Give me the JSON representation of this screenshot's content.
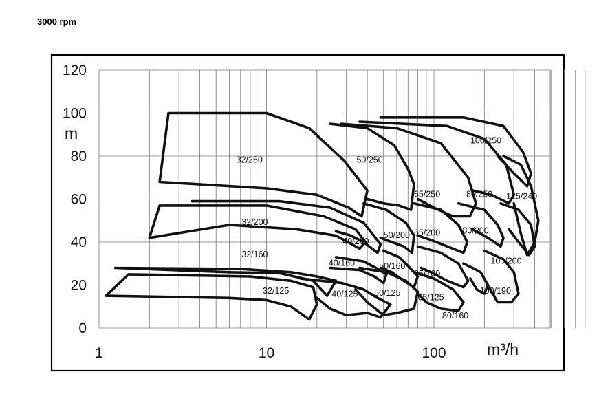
{
  "header": {
    "speed": "3000 rpm"
  },
  "chart_data": {
    "type": "line",
    "title": "",
    "xlabel": "m³/h",
    "ylabel": "m",
    "xscale": "log",
    "xlim": [
      1,
      800
    ],
    "ylim": [
      0,
      120
    ],
    "x_ticks": [
      1,
      10,
      100
    ],
    "x_tick_labels": [
      "1",
      "10",
      "100"
    ],
    "y_ticks": [
      0,
      20,
      40,
      60,
      80,
      100,
      120
    ],
    "y_tick_labels": [
      "0",
      "20",
      "40",
      "60",
      "80",
      "100",
      "120"
    ],
    "grid": true,
    "legend": "none",
    "series": [
      {
        "name": "32/250",
        "label_pos": [
          6.6,
          77
        ],
        "outline": [
          [
            2.3,
            68
          ],
          [
            2.6,
            100
          ],
          [
            10,
            100
          ],
          [
            18,
            93
          ],
          [
            29,
            78
          ],
          [
            40,
            64
          ],
          [
            37,
            52
          ],
          [
            31,
            56
          ],
          [
            20,
            62
          ],
          [
            10,
            65
          ],
          [
            2.3,
            68
          ]
        ]
      },
      {
        "name": "32/200",
        "label_pos": [
          7.1,
          48
        ],
        "outline": [
          [
            2.3,
            57
          ],
          [
            10,
            57
          ],
          [
            22,
            52
          ],
          [
            34,
            46
          ],
          [
            39,
            40
          ],
          [
            36,
            37
          ],
          [
            26,
            43
          ],
          [
            15,
            46
          ],
          [
            6,
            48
          ],
          [
            2,
            42
          ],
          [
            2.3,
            57
          ]
        ]
      },
      {
        "name": "32/160",
        "label_pos": [
          7.1,
          33
        ],
        "outline": [
          [
            1.25,
            28
          ],
          [
            7,
            27.5
          ],
          [
            14,
            26
          ],
          [
            20,
            24
          ],
          [
            26,
            22
          ],
          [
            23,
            15
          ],
          [
            19,
            22
          ],
          [
            12,
            25.5
          ],
          [
            6,
            26
          ],
          [
            1.25,
            28
          ]
        ]
      },
      {
        "name": "32/125",
        "label_pos": [
          9.5,
          16
        ],
        "outline": [
          [
            1.5,
            25
          ],
          [
            8,
            24
          ],
          [
            14,
            22
          ],
          [
            19,
            19
          ],
          [
            20,
            11
          ],
          [
            18,
            4
          ],
          [
            14,
            10
          ],
          [
            10,
            13
          ],
          [
            6,
            14
          ],
          [
            1.1,
            15
          ],
          [
            1.5,
            25
          ]
        ]
      },
      {
        "name": "40/200",
        "label_pos": [
          28.5,
          39
        ],
        "outline": [
          [
            3.6,
            59
          ],
          [
            12,
            59
          ],
          [
            24,
            56
          ],
          [
            38,
            49
          ],
          [
            48,
            39
          ],
          [
            46,
            35
          ],
          [
            38,
            40
          ],
          [
            32,
            43
          ],
          [
            26,
            45
          ]
        ]
      },
      {
        "name": "40/160",
        "label_pos": [
          23.5,
          29
        ],
        "outline": [
          [
            26,
            33
          ],
          [
            38,
            31
          ],
          [
            45,
            28
          ],
          [
            52,
            25
          ],
          [
            50,
            21
          ],
          [
            44,
            24
          ],
          [
            36,
            27
          ],
          [
            24,
            28
          ]
        ]
      },
      {
        "name": "40/125",
        "label_pos": [
          24.5,
          14.5
        ],
        "outline": [
          [
            16,
            23
          ],
          [
            28,
            21
          ],
          [
            38,
            18
          ],
          [
            46,
            14
          ],
          [
            55,
            11
          ],
          [
            48,
            5
          ],
          [
            40,
            7
          ],
          [
            30,
            6
          ],
          [
            24,
            9
          ],
          [
            20,
            14
          ]
        ]
      },
      {
        "name": "50/250",
        "label_pos": [
          34.5,
          77
        ],
        "outline": [
          [
            24,
            95
          ],
          [
            40,
            93
          ],
          [
            58,
            85
          ],
          [
            70,
            74
          ],
          [
            76,
            67
          ],
          [
            73,
            55
          ],
          [
            62,
            57
          ],
          [
            50,
            58
          ],
          [
            40,
            60
          ]
        ]
      },
      {
        "name": "50/200",
        "label_pos": [
          50,
          42
        ],
        "outline": [
          [
            38,
            58
          ],
          [
            52,
            55
          ],
          [
            68,
            49
          ],
          [
            76,
            43
          ],
          [
            74,
            35
          ],
          [
            66,
            38
          ],
          [
            56,
            40
          ],
          [
            48,
            42
          ]
        ]
      },
      {
        "name": "50/160",
        "label_pos": [
          47,
          27.5
        ],
        "outline": [
          [
            50,
            36
          ],
          [
            62,
            33
          ],
          [
            72,
            28
          ],
          [
            80,
            24
          ],
          [
            76,
            19
          ],
          [
            66,
            22
          ],
          [
            56,
            26
          ],
          [
            48,
            28
          ]
        ]
      },
      {
        "name": "50/125",
        "label_pos": [
          44,
          15
        ],
        "outline": [
          [
            36,
            28
          ],
          [
            52,
            26
          ],
          [
            68,
            22
          ],
          [
            80,
            17
          ],
          [
            76,
            9
          ],
          [
            60,
            7
          ],
          [
            50,
            6
          ],
          [
            40,
            12
          ],
          [
            34,
            18
          ]
        ]
      },
      {
        "name": "65/250",
        "label_pos": [
          76,
          61
        ],
        "outline": [
          [
            28,
            95
          ],
          [
            60,
            93
          ],
          [
            110,
            86
          ],
          [
            160,
            70
          ],
          [
            178,
            58
          ],
          [
            164,
            52
          ],
          [
            130,
            52
          ],
          [
            100,
            56
          ],
          [
            80,
            60
          ]
        ]
      },
      {
        "name": "65/200",
        "label_pos": [
          76,
          43
        ],
        "outline": [
          [
            76,
            58
          ],
          [
            110,
            55
          ],
          [
            140,
            48
          ],
          [
            158,
            40
          ],
          [
            150,
            35
          ],
          [
            120,
            38
          ],
          [
            96,
            41
          ],
          [
            80,
            43
          ]
        ]
      },
      {
        "name": "65/160",
        "label_pos": [
          76,
          24
        ],
        "outline": [
          [
            80,
            38
          ],
          [
            110,
            35
          ],
          [
            140,
            30
          ],
          [
            160,
            22
          ],
          [
            150,
            19
          ],
          [
            120,
            22
          ],
          [
            96,
            26
          ],
          [
            84,
            28
          ]
        ]
      },
      {
        "name": "65/125",
        "label_pos": [
          80,
          13
        ],
        "outline": [
          [
            76,
            26
          ],
          [
            100,
            23
          ],
          [
            130,
            18
          ],
          [
            150,
            12
          ],
          [
            140,
            8
          ],
          [
            110,
            9
          ],
          [
            90,
            12
          ],
          [
            80,
            16
          ]
        ]
      },
      {
        "name": "80/250",
        "label_pos": [
          156,
          61
        ],
        "outline": [
          [
            36,
            96
          ],
          [
            120,
            94
          ],
          [
            200,
            88
          ],
          [
            270,
            76
          ],
          [
            300,
            62
          ],
          [
            280,
            58
          ],
          [
            220,
            62
          ],
          [
            170,
            64
          ]
        ]
      },
      {
        "name": "80/200",
        "label_pos": [
          148,
          44
        ],
        "outline": [
          [
            140,
            58
          ],
          [
            200,
            55
          ],
          [
            240,
            48
          ],
          [
            260,
            42
          ],
          [
            250,
            38
          ],
          [
            210,
            42
          ],
          [
            170,
            46
          ]
        ]
      },
      {
        "name": "80/160",
        "label_pos": [
          112,
          4.5
        ],
        "outline": [
          [
            150,
            30
          ],
          [
            170,
            28
          ],
          [
            190,
            26
          ],
          [
            210,
            20
          ],
          [
            200,
            16
          ],
          [
            180,
            18
          ],
          [
            165,
            23
          ]
        ]
      },
      {
        "name": "100/250",
        "label_pos": [
          165,
          86
        ],
        "outline": [
          [
            48,
            98
          ],
          [
            150,
            98
          ],
          [
            260,
            94
          ],
          [
            340,
            82
          ],
          [
            380,
            72
          ],
          [
            360,
            66
          ],
          [
            300,
            72
          ],
          [
            240,
            80
          ]
        ]
      },
      {
        "name": "100/200",
        "label_pos": [
          218,
          30
        ],
        "outline": [
          [
            250,
            58
          ],
          [
            320,
            55
          ],
          [
            380,
            48
          ],
          [
            400,
            38
          ],
          [
            370,
            34
          ],
          [
            320,
            40
          ],
          [
            280,
            46
          ]
        ]
      },
      {
        "name": "100/190",
        "label_pos": [
          188,
          16
        ],
        "outline": [
          [
            200,
            36
          ],
          [
            260,
            32
          ],
          [
            300,
            26
          ],
          [
            320,
            16
          ],
          [
            290,
            12
          ],
          [
            240,
            12
          ],
          [
            210,
            20
          ]
        ]
      },
      {
        "name": "125/240",
        "label_pos": [
          270,
          60
        ],
        "outline": [
          [
            260,
            80
          ],
          [
            330,
            76
          ],
          [
            380,
            66
          ],
          [
            420,
            50
          ],
          [
            400,
            40
          ],
          [
            360,
            34
          ],
          [
            330,
            44
          ],
          [
            300,
            58
          ]
        ]
      }
    ]
  }
}
